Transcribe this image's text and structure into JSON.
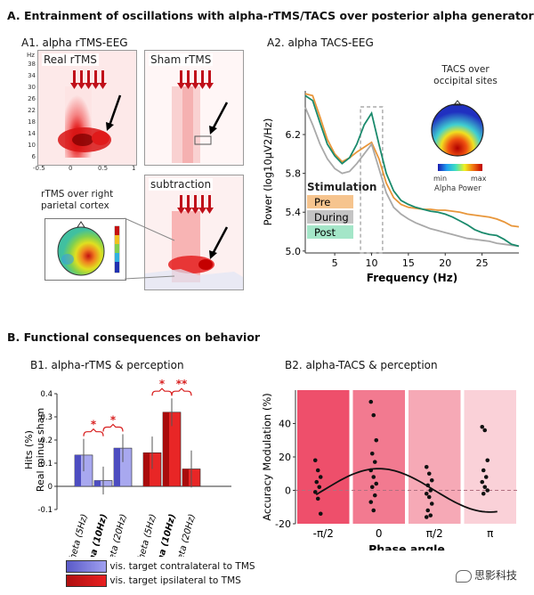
{
  "section_a": {
    "title": "A. Entrainment of oscillations with alpha-rTMS/TACS over posterior alpha generators",
    "a1": {
      "title": "A1. alpha rTMS-EEG",
      "panel_real": "Real rTMS",
      "panel_sham": "Sham rTMS",
      "panel_sub": "subtraction",
      "y_unit": "Hz",
      "y_ticks": [
        "38",
        "34",
        "30",
        "26",
        "22",
        "18",
        "14",
        "10",
        "6"
      ],
      "x_ticks": [
        "-0.5",
        "0",
        "0.5",
        "1"
      ],
      "caption": "rTMS over right parietal cortex"
    },
    "a2": {
      "title": "A2. alpha TACS-EEG",
      "inset_title": "TACS over occipital sites",
      "colorbar_min": "min",
      "colorbar_max": "max",
      "colorbar_label": "Alpha Power"
    }
  },
  "section_b": {
    "title": "B. Functional consequences on behavior",
    "b1": {
      "title": "B1. alpha-rTMS & perception",
      "legend": [
        {
          "label": "vis. target contralateral to TMS",
          "color": "#6e6ede"
        },
        {
          "label": "vis. target ipsilateral to TMS",
          "color": "#d81e1e"
        }
      ]
    },
    "b2": {
      "title": "B2. alpha-TACS & perception"
    }
  },
  "watermark": "思影科技",
  "chart_data": [
    {
      "type": "line",
      "panel": "A2",
      "xlabel": "Frequency (Hz)",
      "ylabel": "Power (log10µV2/Hz)",
      "xlim": [
        1,
        30
      ],
      "ylim": [
        4.98,
        6.65
      ],
      "x_ticks": [
        5,
        10,
        15,
        20,
        25
      ],
      "y_ticks": [
        5.0,
        5.4,
        5.8,
        6.2
      ],
      "legend_title": "Stimulation",
      "series": [
        {
          "name": "Pre",
          "color": "#e8963a",
          "x": [
            1,
            2,
            3,
            4,
            5,
            6,
            7,
            8,
            9,
            10,
            11,
            12,
            13,
            14,
            15,
            16,
            17,
            18,
            19,
            20,
            21,
            22,
            23,
            24,
            25,
            26,
            27,
            28,
            29,
            30
          ],
          "y": [
            6.62,
            6.6,
            6.38,
            6.15,
            6.0,
            5.92,
            5.96,
            6.02,
            6.07,
            6.12,
            5.95,
            5.7,
            5.55,
            5.48,
            5.45,
            5.44,
            5.43,
            5.43,
            5.42,
            5.42,
            5.41,
            5.4,
            5.38,
            5.37,
            5.36,
            5.35,
            5.33,
            5.3,
            5.26,
            5.25
          ]
        },
        {
          "name": "During",
          "color": "#a9a9a9",
          "x": [
            1,
            2,
            3,
            4,
            5,
            6,
            7,
            8,
            9,
            10,
            11,
            12,
            13,
            14,
            15,
            16,
            17,
            18,
            19,
            20,
            21,
            22,
            23,
            24,
            25,
            26,
            27,
            28,
            29,
            30
          ],
          "y": [
            6.48,
            6.3,
            6.1,
            5.95,
            5.85,
            5.8,
            5.82,
            5.9,
            6.0,
            6.1,
            5.85,
            5.6,
            5.45,
            5.38,
            5.33,
            5.29,
            5.26,
            5.23,
            5.21,
            5.19,
            5.17,
            5.15,
            5.13,
            5.12,
            5.11,
            5.1,
            5.08,
            5.07,
            5.06,
            5.05
          ]
        },
        {
          "name": "Post",
          "color": "#1a8a6c",
          "x": [
            1,
            2,
            3,
            4,
            5,
            6,
            7,
            8,
            9,
            10,
            11,
            12,
            13,
            14,
            15,
            16,
            17,
            18,
            19,
            20,
            21,
            22,
            23,
            24,
            25,
            26,
            27,
            28,
            29,
            30
          ],
          "y": [
            6.6,
            6.55,
            6.32,
            6.1,
            5.98,
            5.9,
            5.96,
            6.1,
            6.3,
            6.42,
            6.1,
            5.8,
            5.62,
            5.52,
            5.48,
            5.45,
            5.43,
            5.41,
            5.4,
            5.38,
            5.35,
            5.31,
            5.27,
            5.22,
            5.19,
            5.17,
            5.16,
            5.12,
            5.07,
            5.05
          ]
        }
      ],
      "annotations": [
        {
          "type": "dashed-box",
          "x": [
            8.5,
            11.5
          ]
        }
      ]
    },
    {
      "type": "bar",
      "panel": "B1",
      "ylabel": "Hits (%) Real minus sham",
      "ylim": [
        -0.1,
        0.4
      ],
      "y_ticks": [
        "-0.1",
        "0",
        "0.1",
        "0.2",
        "0.3",
        "0.4"
      ],
      "categories": [
        "theta (5Hz)",
        "alpha (10Hz)",
        "beta (20Hz)",
        "theta (5Hz)",
        "alpha (10Hz)",
        "beta (20Hz)"
      ],
      "bold_categories": [
        false,
        true,
        false,
        false,
        true,
        false
      ],
      "values": [
        0.135,
        0.025,
        0.165,
        0.145,
        0.32,
        0.075
      ],
      "errors": [
        0.07,
        0.06,
        0.06,
        0.07,
        0.06,
        0.08
      ],
      "group": [
        "contralateral",
        "contralateral",
        "contralateral",
        "ipsilateral",
        "ipsilateral",
        "ipsilateral"
      ],
      "significance": [
        {
          "from": 0,
          "to": 1,
          "label": "*"
        },
        {
          "from": 1,
          "to": 2,
          "label": "*"
        },
        {
          "from": 3,
          "to": 4,
          "label": "*"
        },
        {
          "from": 4,
          "to": 5,
          "label": "**"
        }
      ]
    },
    {
      "type": "scatter",
      "panel": "B2",
      "xlabel": "Phase angle",
      "ylabel": "Accuracy Modulation (%)",
      "ylim": [
        -20,
        60
      ],
      "y_ticks": [
        -20,
        0,
        20,
        40
      ],
      "x_ticks": [
        "-π/2",
        "0",
        "π/2",
        "π"
      ],
      "bins": [
        {
          "color": "#ee4f6b",
          "points": [
            18,
            12,
            8,
            5,
            2,
            -1,
            -5,
            -14
          ]
        },
        {
          "color": "#f27a90",
          "points": [
            53,
            45,
            30,
            22,
            17,
            12,
            8,
            4,
            2,
            -3,
            -7,
            -12
          ]
        },
        {
          "color": "#f6a9b6",
          "points": [
            14,
            10,
            6,
            3,
            0,
            -2,
            -4,
            -8,
            -12,
            -15,
            -16
          ]
        },
        {
          "color": "#fad1d8",
          "points": [
            38,
            36,
            18,
            12,
            8,
            5,
            2,
            0,
            -2
          ]
        }
      ],
      "fit_curve_amplitude": 13
    }
  ]
}
